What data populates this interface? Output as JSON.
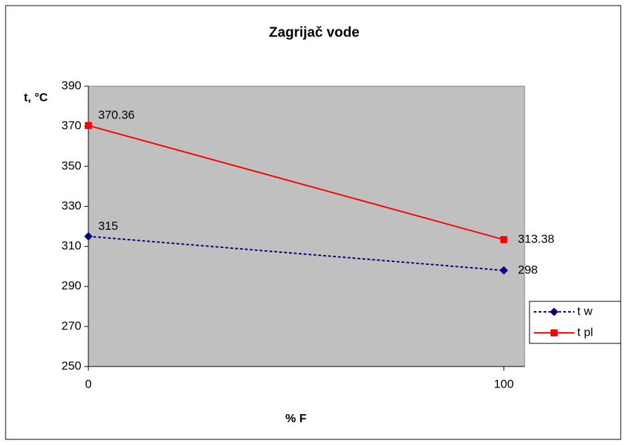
{
  "chart_data": {
    "type": "line",
    "title": "Zagrijač vode",
    "x_label": "% F",
    "y_label": "t, °C",
    "x": [
      0,
      100
    ],
    "xlim": [
      0,
      105
    ],
    "xticks": [
      0,
      100
    ],
    "ylim": [
      250,
      390
    ],
    "yticks": [
      250,
      270,
      290,
      310,
      330,
      350,
      370,
      390
    ],
    "legend": "right",
    "series": [
      {
        "name": "t w",
        "color": "#000080",
        "values": [
          315,
          298
        ]
      },
      {
        "name": "t pl",
        "color": "#ff0000",
        "values": [
          370.36,
          313.38
        ]
      }
    ]
  }
}
